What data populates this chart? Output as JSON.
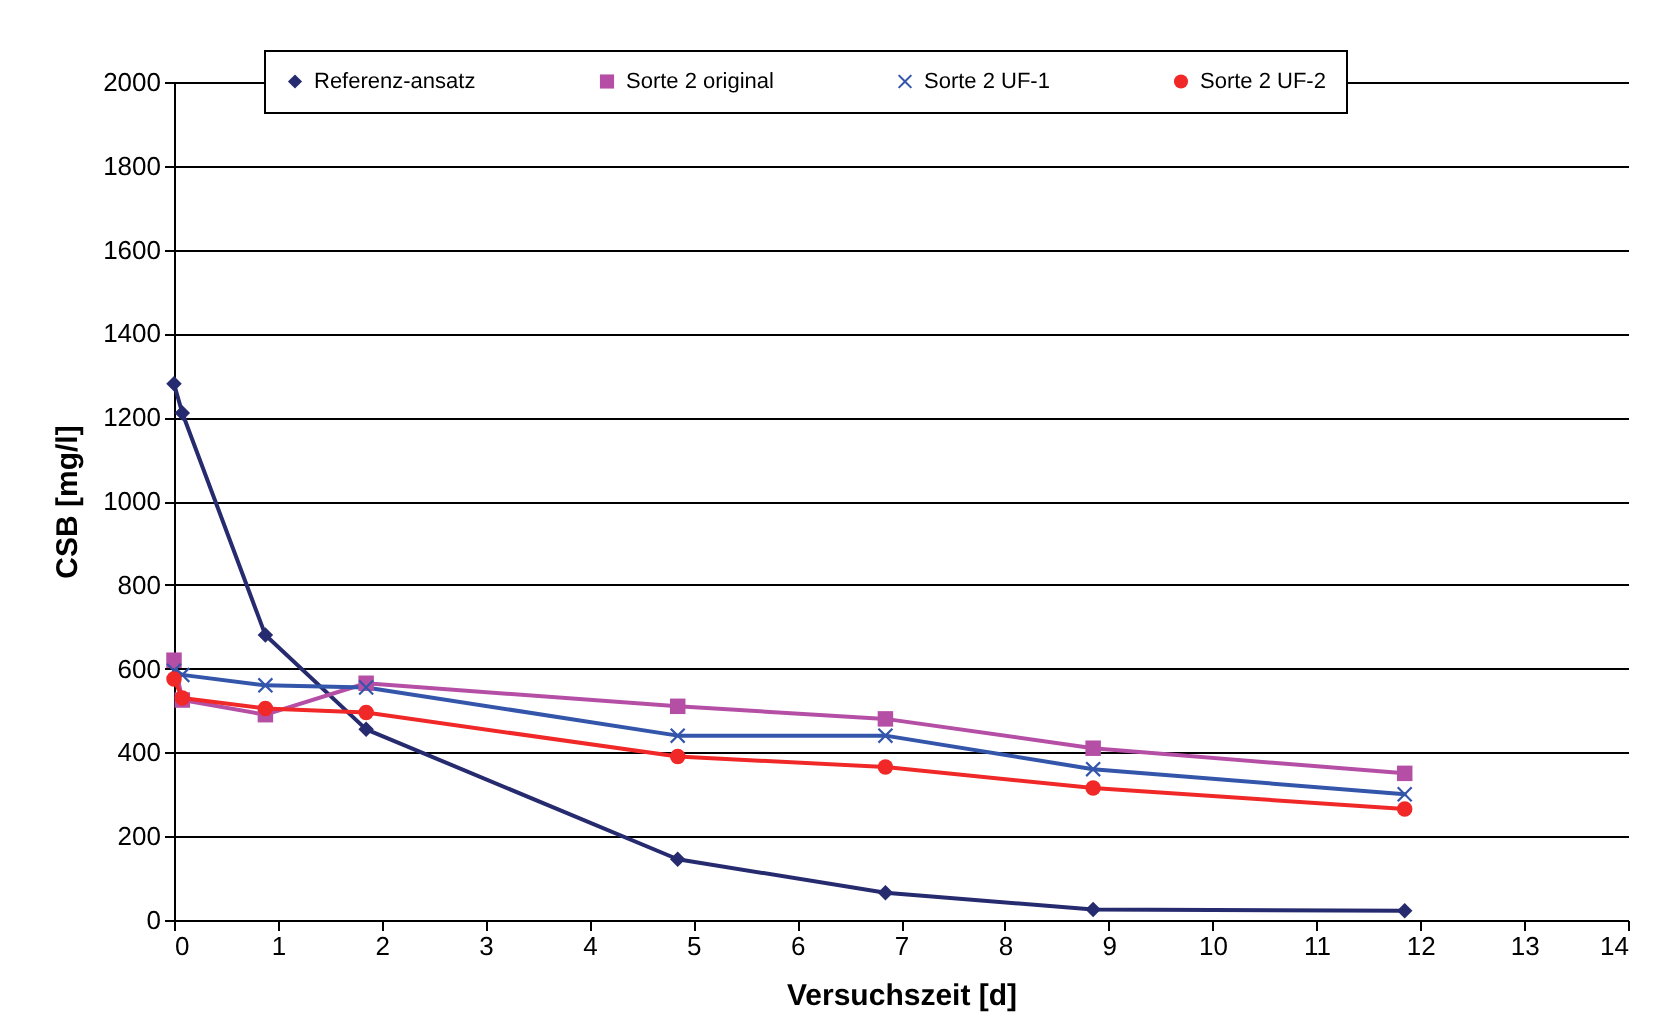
{
  "chart_data": {
    "type": "line",
    "xlabel": "Versuchszeit [d]",
    "ylabel": "CSB [mg/l]",
    "x": [
      0,
      0.08,
      0.88,
      1.85,
      4.85,
      6.85,
      8.85,
      11.85
    ],
    "series": [
      {
        "name": "Referenz-ansatz",
        "color": "#262a6e",
        "marker": "diamond",
        "values": [
          1280,
          1210,
          680,
          455,
          145,
          65,
          25,
          22
        ]
      },
      {
        "name": "Sorte 2 original",
        "color": "#b54fa6",
        "marker": "square",
        "values": [
          620,
          525,
          490,
          565,
          510,
          480,
          410,
          350
        ]
      },
      {
        "name": "Sorte 2 UF-1",
        "color": "#3355aa",
        "marker": "cross",
        "values": [
          595,
          585,
          560,
          555,
          440,
          440,
          360,
          300
        ]
      },
      {
        "name": "Sorte 2 UF-2",
        "color": "#f02828",
        "marker": "circle",
        "values": [
          575,
          530,
          505,
          495,
          390,
          365,
          315,
          265
        ]
      }
    ],
    "xlim": [
      0,
      14
    ],
    "xticks": [
      0,
      1,
      2,
      3,
      4,
      5,
      6,
      7,
      8,
      9,
      10,
      11,
      12,
      13,
      14
    ],
    "ylim": [
      0,
      2000
    ],
    "yticks": [
      0,
      200,
      400,
      600,
      800,
      1000,
      1200,
      1400,
      1600,
      1800,
      2000
    ],
    "grid": "y",
    "legend": "top",
    "line_style": "solid"
  }
}
